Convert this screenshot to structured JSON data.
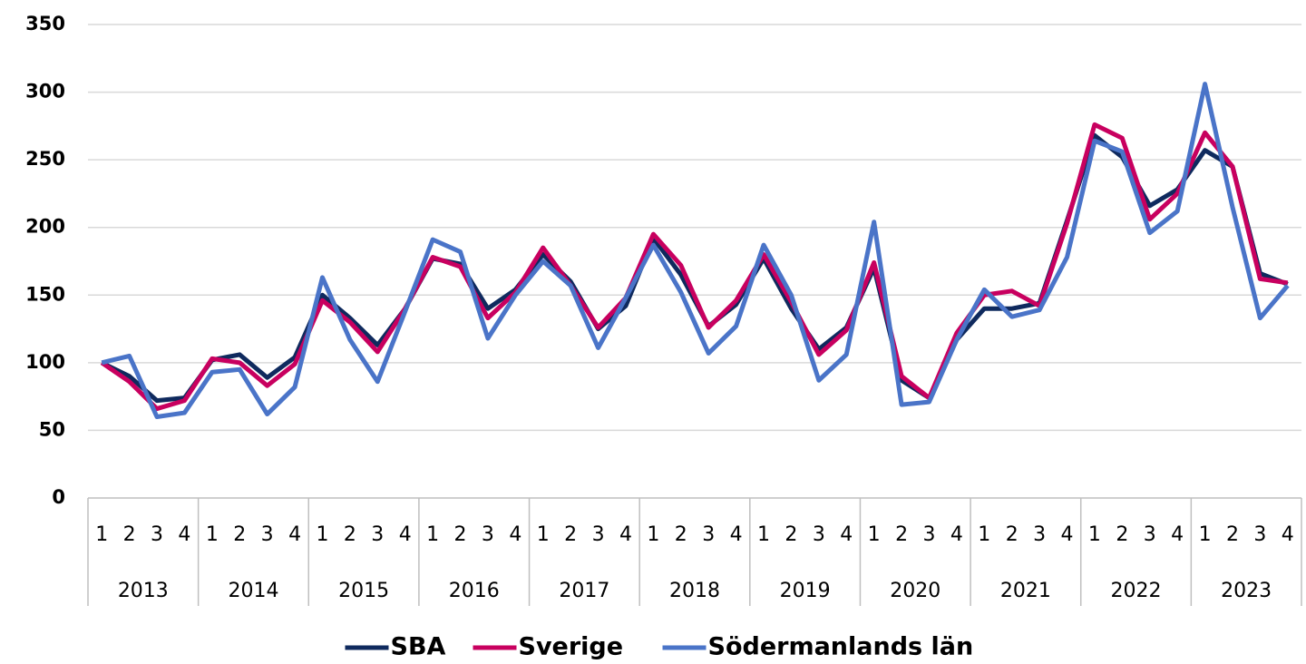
{
  "chart_data": {
    "type": "line",
    "categories": [
      "1",
      "2",
      "3",
      "4",
      "1",
      "2",
      "3",
      "4",
      "1",
      "2",
      "3",
      "4",
      "1",
      "2",
      "3",
      "4",
      "1",
      "2",
      "3",
      "4",
      "1",
      "2",
      "3",
      "4",
      "1",
      "2",
      "3",
      "4",
      "1",
      "2",
      "3",
      "4",
      "1",
      "2",
      "3",
      "4",
      "1",
      "2",
      "3",
      "4",
      "1",
      "2",
      "3",
      "4"
    ],
    "groups": [
      "2013",
      "2014",
      "2015",
      "2016",
      "2017",
      "2018",
      "2019",
      "2020",
      "2021",
      "2022",
      "2023"
    ],
    "series": [
      {
        "name": "SBA",
        "color": "#0f2a5e",
        "values": [
          100,
          90,
          72,
          74,
          102,
          106,
          89,
          104,
          150,
          133,
          113,
          140,
          177,
          173,
          140,
          154,
          180,
          160,
          125,
          142,
          192,
          165,
          127,
          143,
          177,
          140,
          110,
          126,
          170,
          87,
          74,
          117,
          140,
          140,
          144,
          205,
          268,
          252,
          216,
          228,
          257,
          245,
          166,
          158
        ]
      },
      {
        "name": "Sverige",
        "color": "#c8005f",
        "values": [
          100,
          86,
          66,
          72,
          103,
          100,
          83,
          99,
          146,
          130,
          108,
          140,
          178,
          171,
          133,
          152,
          185,
          157,
          126,
          148,
          195,
          172,
          126,
          146,
          180,
          145,
          106,
          124,
          174,
          90,
          74,
          122,
          150,
          153,
          142,
          203,
          276,
          266,
          206,
          225,
          270,
          245,
          162,
          159
        ]
      },
      {
        "name": "Södermanlands län",
        "color": "#4a74c8",
        "values": [
          100,
          105,
          60,
          63,
          93,
          95,
          62,
          82,
          163,
          117,
          86,
          138,
          191,
          182,
          118,
          150,
          175,
          157,
          111,
          148,
          187,
          152,
          107,
          127,
          187,
          150,
          87,
          106,
          204,
          69,
          71,
          117,
          154,
          134,
          139,
          178,
          264,
          256,
          196,
          212,
          306,
          215,
          133,
          157
        ]
      }
    ],
    "ylim": [
      0,
      350
    ],
    "yticks": [
      0,
      50,
      100,
      150,
      200,
      250,
      300,
      350
    ],
    "grid": true,
    "legend": "bottom"
  }
}
